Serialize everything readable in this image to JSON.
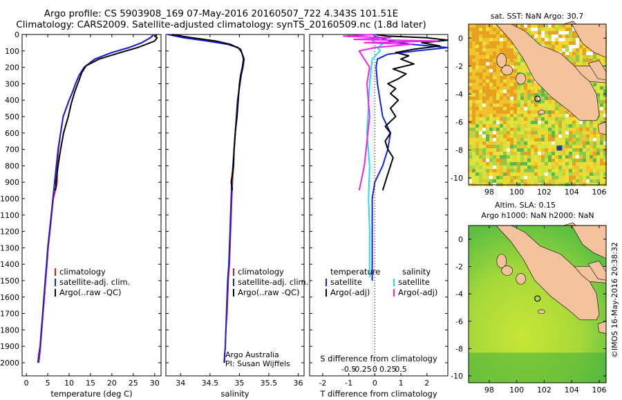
{
  "title_line1": "Argo profile: CS 5903908_169 07-May-2016 20160507_722 4.343S 101.51E",
  "title_line2": "Climatology: CARS2009. Satellite-adjusted climatology: synTS_20160509.nc (1.8d later)",
  "colors": {
    "climatology": "#ee1111",
    "satellite": "#1122dd",
    "argo": "#000000",
    "sal_satellite": "#22ddee",
    "sal_argo": "#ee22ee",
    "land": "#f4c29c"
  },
  "depth_ticks": [
    0,
    100,
    200,
    300,
    400,
    500,
    600,
    700,
    800,
    900,
    1000,
    1100,
    1200,
    1300,
    1400,
    1500,
    1600,
    1700,
    1800,
    1900,
    2000
  ],
  "chart_data": [
    {
      "type": "line",
      "name": "temperature",
      "xlabel": "temperature (deg C)",
      "ylabel": "",
      "xlim": [
        -1,
        31.5
      ],
      "ylim": [
        2080,
        0
      ],
      "xticks": [
        0,
        5,
        10,
        15,
        20,
        25,
        30
      ],
      "legend": [
        "climatology",
        "satellite-adj. clim.",
        "Argo(..raw -QC)"
      ],
      "series": [
        {
          "name": "climatology",
          "color": "red",
          "x": [
            29.8,
            29.5,
            29.0,
            27,
            24,
            20,
            16,
            13.5,
            12.3,
            11.5,
            10.8,
            10,
            9.3,
            8.6,
            8,
            7.5,
            7.2,
            7.2,
            6.8,
            6.3,
            5.9,
            5.5,
            5.1,
            4.8,
            4.5,
            4.2,
            3.9,
            3.6,
            3.3,
            3.1,
            2.9
          ],
          "y": [
            0,
            10,
            20,
            50,
            80,
            110,
            150,
            200,
            250,
            300,
            350,
            400,
            450,
            500,
            600,
            700,
            800,
            900,
            950,
            1000,
            1100,
            1200,
            1300,
            1400,
            1500,
            1600,
            1700,
            1800,
            1900,
            1950,
            2000
          ]
        },
        {
          "name": "satellite-adj. clim.",
          "color": "blue",
          "x": [
            29.7,
            29.4,
            29.0,
            27,
            24,
            20,
            16,
            13.5,
            12.3,
            11.5,
            10.8,
            10,
            9.3,
            8.6,
            8,
            7.4,
            7,
            6.6,
            6.2,
            5.8,
            5.4,
            5.0,
            4.7,
            4.4,
            4.1,
            3.8,
            3.5,
            3.2,
            2.9,
            2.7
          ],
          "y": [
            0,
            10,
            20,
            50,
            80,
            110,
            150,
            200,
            250,
            300,
            350,
            400,
            450,
            500,
            600,
            700,
            800,
            900,
            1000,
            1100,
            1200,
            1300,
            1400,
            1500,
            1600,
            1700,
            1800,
            1900,
            1950,
            2000
          ]
        },
        {
          "name": "Argo(..raw -QC)",
          "color": "black",
          "x": [
            30.5,
            30.2,
            30.6,
            30,
            28,
            26,
            22,
            17,
            14,
            13,
            12.3,
            11.3,
            10.5,
            9.8,
            8.7,
            8,
            7.4,
            6.9,
            6.9,
            6.7
          ],
          "y": [
            0,
            10,
            20,
            40,
            60,
            80,
            110,
            150,
            190,
            230,
            280,
            350,
            420,
            500,
            600,
            700,
            800,
            900,
            930,
            950
          ]
        }
      ]
    },
    {
      "type": "line",
      "name": "salinity",
      "xlabel": "salinity",
      "ylabel": "",
      "xlim": [
        33.75,
        36.1
      ],
      "ylim": [
        2080,
        0
      ],
      "xticks": [
        34,
        34.5,
        35,
        35.5,
        36
      ],
      "legend": [
        "climatology",
        "satellite-adj. clim.",
        "Argo(..raw -QC)"
      ],
      "annotations": [
        "Argo Australia",
        "PI: Susan Wijffels"
      ],
      "series": [
        {
          "name": "climatology",
          "color": "red",
          "x": [
            33.8,
            34.1,
            34.5,
            34.8,
            34.98,
            35.04,
            35.08,
            35.06,
            35.03,
            35.01,
            34.99,
            34.97,
            34.95,
            34.93,
            34.91,
            34.9,
            34.88,
            34.87,
            34.86,
            34.85,
            34.84,
            34.83,
            34.81,
            34.8,
            34.79,
            34.77,
            34.76,
            34.75,
            34.75
          ],
          "y": [
            0,
            20,
            40,
            60,
            80,
            110,
            150,
            200,
            250,
            300,
            350,
            400,
            500,
            600,
            700,
            800,
            900,
            1000,
            1100,
            1200,
            1300,
            1400,
            1500,
            1600,
            1700,
            1800,
            1900,
            1950,
            2000
          ]
        },
        {
          "name": "satellite-adj. clim.",
          "color": "blue",
          "x": [
            33.78,
            34.05,
            34.45,
            34.8,
            34.98,
            35.04,
            35.08,
            35.06,
            35.03,
            35.01,
            34.99,
            34.97,
            34.95,
            34.93,
            34.91,
            34.89,
            34.87,
            34.86,
            34.85,
            34.84,
            34.83,
            34.82,
            34.8,
            34.79,
            34.78,
            34.77,
            34.76,
            34.75,
            34.74
          ],
          "y": [
            0,
            20,
            40,
            60,
            80,
            110,
            150,
            200,
            250,
            300,
            350,
            400,
            500,
            600,
            700,
            800,
            900,
            1000,
            1100,
            1200,
            1300,
            1400,
            1500,
            1600,
            1700,
            1800,
            1900,
            1950,
            2000
          ]
        },
        {
          "name": "Argo(..raw -QC)",
          "color": "black",
          "x": [
            33.85,
            34.2,
            34.6,
            34.85,
            35.02,
            35.05,
            35.07,
            35.05,
            35.02,
            35.0,
            34.98,
            34.96,
            34.93,
            34.91,
            34.9,
            34.88,
            34.86,
            34.88
          ],
          "y": [
            0,
            20,
            40,
            60,
            90,
            120,
            150,
            200,
            250,
            300,
            400,
            500,
            600,
            700,
            800,
            850,
            900,
            950
          ]
        }
      ]
    },
    {
      "type": "line",
      "name": "difference",
      "xlabel": "T difference from climatology",
      "ylabel": "",
      "xlim": [
        -2.5,
        2.8
      ],
      "ylim": [
        2080,
        0
      ],
      "xticks": [
        -2,
        -1,
        0,
        1,
        2
      ],
      "top_axis_label": "S difference from climatology",
      "top_ticks": [
        "-0.5",
        "-0.25",
        "0",
        "0.25",
        "0.5"
      ],
      "legend_titles": [
        "temperature",
        "salinity"
      ],
      "legend": [
        "satellite",
        "Argo(-adj)",
        "satellite",
        "Argo(-adj)"
      ],
      "series": [
        {
          "name": "satellite",
          "group": "temperature",
          "color": "blue",
          "x": [
            -0.1,
            0.2,
            0.6,
            1.4,
            2.8,
            1.6,
            0.5,
            0.1,
            0.05,
            0.1,
            0.3,
            0.6,
            0.5,
            0.3,
            0,
            -0.1,
            -0.1,
            -0.1,
            -0.1,
            -0.1,
            -0.1,
            -0.1,
            -0.1
          ],
          "y": [
            0,
            20,
            40,
            60,
            80,
            100,
            120,
            150,
            200,
            300,
            500,
            600,
            700,
            800,
            900,
            1000,
            1100,
            1200,
            1300,
            1400,
            1450,
            1480,
            1500
          ]
        },
        {
          "name": "Argo(-adj)",
          "group": "temperature",
          "color": "black",
          "x": [
            0,
            0.5,
            2,
            2.8,
            1.8,
            2.5,
            1.5,
            0.8,
            1.3,
            1.0,
            1.5,
            0.7,
            1.2,
            0.9,
            0.5,
            0.8,
            0.6,
            0.9,
            0.6,
            0.8,
            0.4,
            0.6,
            0.4,
            0.5,
            0.7,
            0.5,
            0.3
          ],
          "y": [
            0,
            10,
            20,
            35,
            50,
            70,
            90,
            110,
            130,
            150,
            180,
            210,
            240,
            270,
            300,
            330,
            360,
            400,
            450,
            500,
            560,
            600,
            650,
            700,
            750,
            850,
            950
          ]
        },
        {
          "name": "satellite",
          "group": "salinity",
          "color": "cyan",
          "x": [
            0,
            0.1,
            -0.05,
            0.15,
            0.05,
            0.1,
            -0.05,
            -0.1,
            -0.15,
            -0.1,
            -0.12,
            -0.1,
            -0.1,
            -0.1
          ],
          "y": [
            0,
            20,
            40,
            60,
            80,
            100,
            150,
            300,
            600,
            800,
            1000,
            1200,
            1400,
            1480
          ]
        },
        {
          "name": "Argo(-adj)",
          "group": "salinity",
          "color": "magenta",
          "x": [
            0,
            -0.6,
            0.3,
            -0.4,
            1.2,
            -0.2,
            0.7,
            0,
            -0.3,
            -0.2,
            -0.1,
            -0.15,
            -0.1,
            -0.2,
            -0.3
          ],
          "y": [
            0,
            10,
            20,
            30,
            40,
            50,
            60,
            80,
            100,
            150,
            200,
            300,
            500,
            800,
            950
          ]
        }
      ]
    }
  ],
  "map_sst": {
    "title": "sat. SST: NaN Argo: 30.7",
    "xticks": [
      98,
      100,
      102,
      104,
      106
    ],
    "yticks": [
      0,
      -2,
      -4,
      -6,
      -8,
      -10
    ],
    "xlim": [
      96.5,
      106.5
    ],
    "ylim": [
      -10.5,
      1
    ]
  },
  "map_sla": {
    "title1": "Altim. SLA: 0.15",
    "title2": "Argo h1000: NaN h2000: NaN",
    "xticks": [
      98,
      100,
      102,
      104,
      106
    ],
    "yticks": [
      0,
      -2,
      -4,
      -6,
      -8,
      -10
    ],
    "xlim": [
      96.5,
      106.5
    ],
    "ylim": [
      -10.5,
      1
    ]
  },
  "argo_position": {
    "lon": 101.51,
    "lat": -4.343
  },
  "timestamp": "©IMOS 16-May-2016 20:38:32"
}
